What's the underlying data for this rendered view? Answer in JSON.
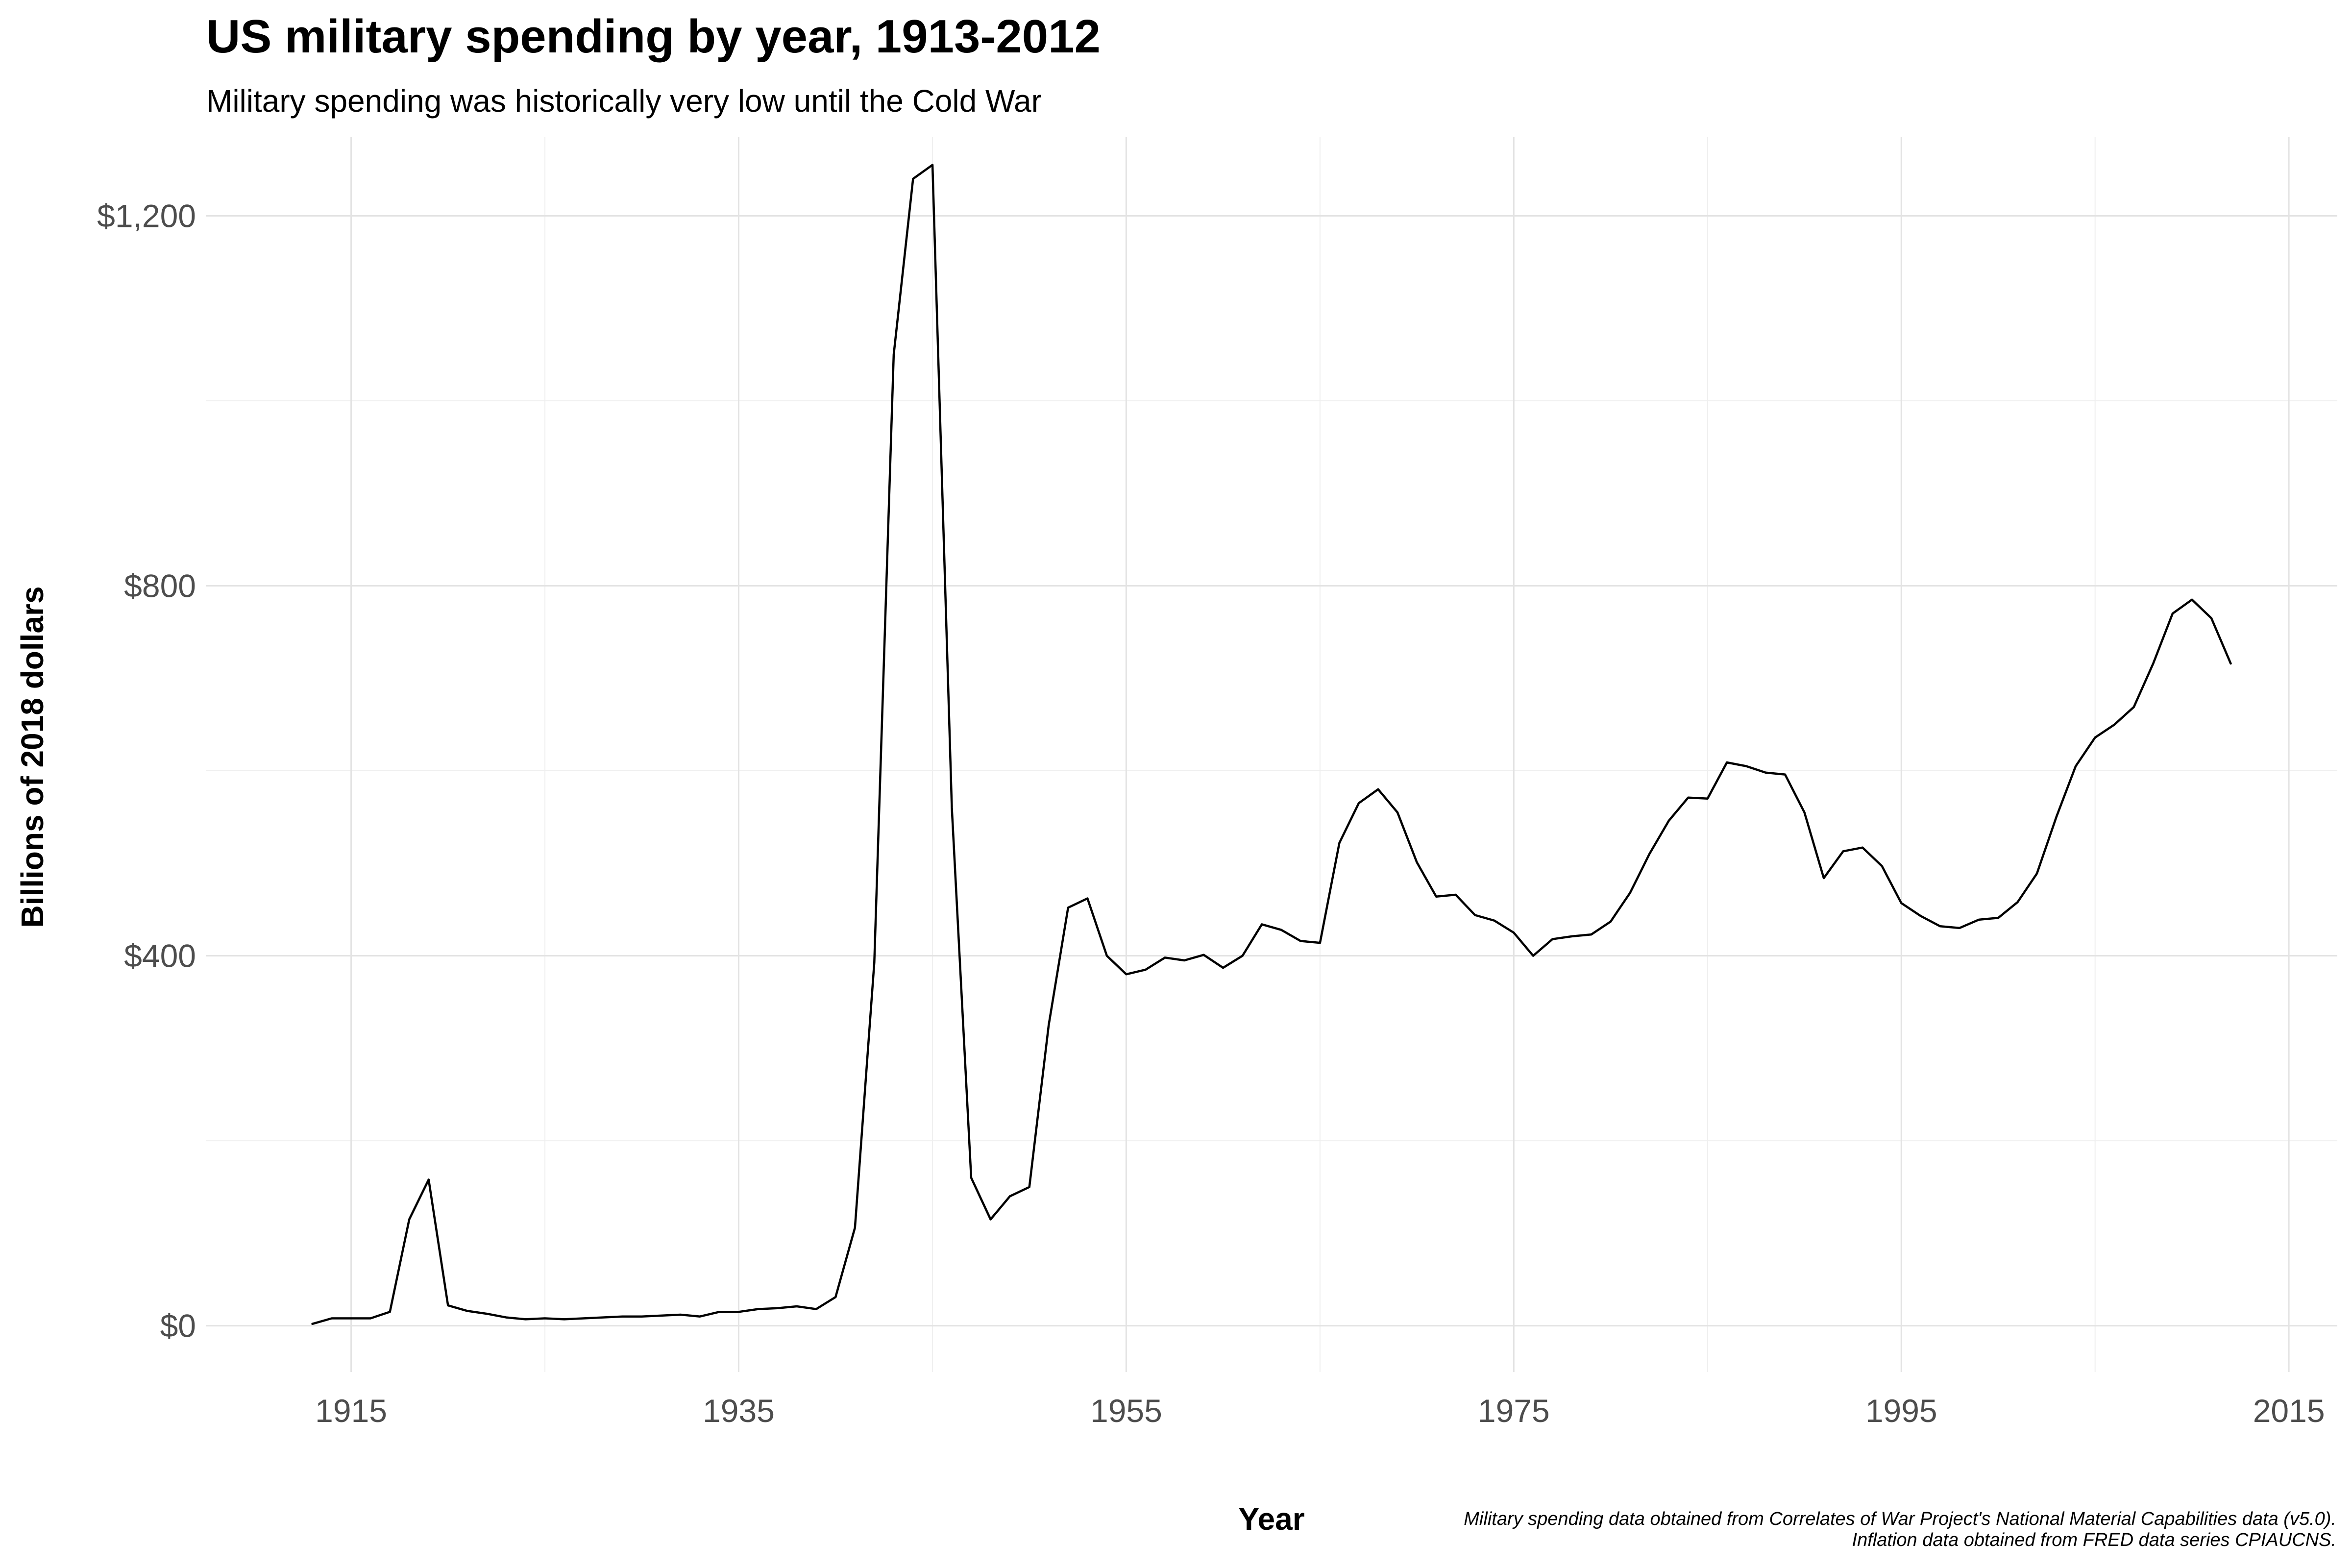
{
  "chart_data": {
    "type": "line",
    "title": "US military spending by year, 1913-2012",
    "subtitle": "Military spending was historically very low until the Cold War",
    "xlabel": "Year",
    "ylabel": "Billions of 2018 dollars",
    "xlim": [
      1907.5,
      2017.5
    ],
    "ylim": [
      -50,
      1285
    ],
    "x_ticks": [
      1915,
      1935,
      1955,
      1975,
      1995,
      2015
    ],
    "y_ticks": [
      0,
      400,
      800,
      1200
    ],
    "y_tick_labels": [
      "$0",
      "$400",
      "$800",
      "$1,200"
    ],
    "grid": true,
    "legend": "none",
    "caption": [
      "Military spending data obtained from Correlates of War Project's National Material Capabilities data (v5.0).",
      "Inflation data obtained from FRED data series CPIAUCNS."
    ],
    "series": [
      {
        "name": "Military spending",
        "x": [
          1913,
          1914,
          1915,
          1916,
          1917,
          1918,
          1919,
          1920,
          1921,
          1922,
          1923,
          1924,
          1925,
          1926,
          1927,
          1928,
          1929,
          1930,
          1931,
          1932,
          1933,
          1934,
          1935,
          1936,
          1937,
          1938,
          1939,
          1940,
          1941,
          1942,
          1943,
          1944,
          1945,
          1946,
          1947,
          1948,
          1949,
          1950,
          1951,
          1952,
          1953,
          1954,
          1955,
          1956,
          1957,
          1958,
          1959,
          1960,
          1961,
          1962,
          1963,
          1964,
          1965,
          1966,
          1967,
          1968,
          1969,
          1970,
          1971,
          1972,
          1973,
          1974,
          1975,
          1976,
          1977,
          1978,
          1979,
          1980,
          1981,
          1982,
          1983,
          1984,
          1985,
          1986,
          1987,
          1988,
          1989,
          1990,
          1991,
          1992,
          1993,
          1994,
          1995,
          1996,
          1997,
          1998,
          1999,
          2000,
          2001,
          2002,
          2003,
          2004,
          2005,
          2006,
          2007,
          2008,
          2009,
          2010,
          2011,
          2012
        ],
        "values": [
          2,
          8,
          8,
          8,
          15,
          115,
          158,
          22,
          16,
          13,
          9,
          7,
          8,
          7,
          8,
          9,
          10,
          10,
          11,
          12,
          10,
          15,
          15,
          18,
          19,
          21,
          18,
          31,
          106,
          393,
          1050,
          1240,
          1255,
          560,
          160,
          115,
          140,
          150,
          325,
          452,
          462,
          400,
          380,
          385,
          398,
          395,
          401,
          387,
          400,
          434,
          428,
          416,
          414,
          522,
          565,
          580,
          555,
          501,
          464,
          466,
          444,
          438,
          425,
          400,
          418,
          421,
          423,
          437,
          468,
          510,
          546,
          571,
          570,
          609,
          605,
          598,
          596,
          555,
          484,
          513,
          517,
          497,
          457,
          443,
          432,
          430,
          439,
          441,
          458,
          489,
          550,
          605,
          636,
          650,
          669,
          716,
          770,
          785,
          765,
          716
        ]
      }
    ]
  }
}
